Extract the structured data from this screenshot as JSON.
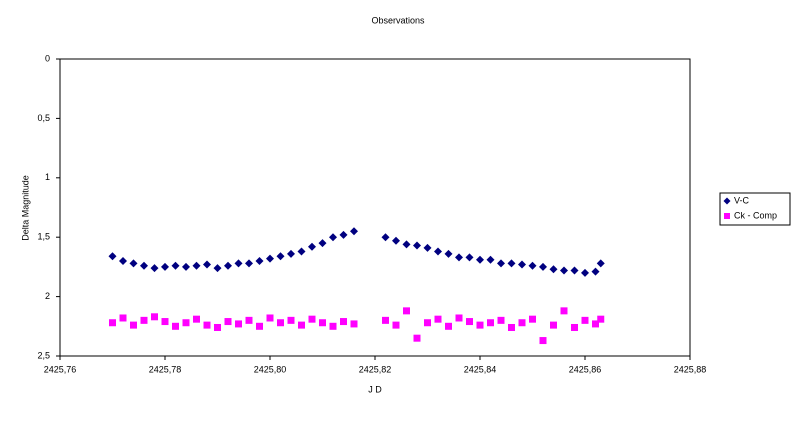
{
  "chart_data": {
    "type": "scatter",
    "title": "Observations",
    "xlabel": "J D",
    "ylabel": "Delta Magnitude",
    "x": [
      2425.77,
      2425.772,
      2425.774,
      2425.776,
      2425.778,
      2425.78,
      2425.782,
      2425.784,
      2425.786,
      2425.788,
      2425.79,
      2425.792,
      2425.794,
      2425.796,
      2425.798,
      2425.8,
      2425.802,
      2425.804,
      2425.806,
      2425.808,
      2425.81,
      2425.812,
      2425.814,
      2425.816,
      2425.822,
      2425.824,
      2425.826,
      2425.828,
      2425.83,
      2425.832,
      2425.834,
      2425.836,
      2425.838,
      2425.84,
      2425.842,
      2425.844,
      2425.846,
      2425.848,
      2425.85,
      2425.852,
      2425.854,
      2425.856,
      2425.858,
      2425.86,
      2425.862,
      2425.863
    ],
    "series": [
      {
        "name": "V-C",
        "color": "#000080",
        "marker": "diamond",
        "values": [
          1.66,
          1.7,
          1.72,
          1.74,
          1.76,
          1.75,
          1.74,
          1.75,
          1.74,
          1.73,
          1.76,
          1.74,
          1.72,
          1.72,
          1.7,
          1.68,
          1.66,
          1.64,
          1.62,
          1.58,
          1.55,
          1.5,
          1.48,
          1.45,
          1.5,
          1.53,
          1.56,
          1.57,
          1.59,
          1.62,
          1.64,
          1.67,
          1.67,
          1.69,
          1.69,
          1.72,
          1.72,
          1.73,
          1.74,
          1.75,
          1.77,
          1.78,
          1.78,
          1.8,
          1.79,
          1.72
        ]
      },
      {
        "name": "Ck - Comp",
        "color": "#ff00ff",
        "marker": "square",
        "values": [
          2.22,
          2.18,
          2.24,
          2.2,
          2.17,
          2.21,
          2.25,
          2.22,
          2.19,
          2.24,
          2.26,
          2.21,
          2.23,
          2.2,
          2.25,
          2.18,
          2.22,
          2.2,
          2.24,
          2.19,
          2.22,
          2.25,
          2.21,
          2.23,
          2.2,
          2.24,
          2.12,
          2.35,
          2.22,
          2.19,
          2.25,
          2.18,
          2.21,
          2.24,
          2.22,
          2.2,
          2.26,
          2.22,
          2.19,
          2.37,
          2.24,
          2.12,
          2.26,
          2.2,
          2.23,
          2.19
        ]
      }
    ],
    "xlim": [
      2425.76,
      2425.88
    ],
    "xticks": [
      {
        "value": 2425.76,
        "label": "2425,76"
      },
      {
        "value": 2425.78,
        "label": "2425,78"
      },
      {
        "value": 2425.8,
        "label": "2425,80"
      },
      {
        "value": 2425.82,
        "label": "2425,82"
      },
      {
        "value": 2425.84,
        "label": "2425,84"
      },
      {
        "value": 2425.86,
        "label": "2425,86"
      },
      {
        "value": 2425.88,
        "label": "2425,88"
      }
    ],
    "ylim": [
      0,
      2.5
    ],
    "y_inverted": true,
    "yticks": [
      0,
      {
        "value": 0.5,
        "label": "0,5"
      },
      1,
      {
        "value": 1.5,
        "label": "1,5"
      },
      2,
      {
        "value": 2.5,
        "label": "2,5"
      }
    ],
    "grid": false,
    "legend": "right"
  }
}
